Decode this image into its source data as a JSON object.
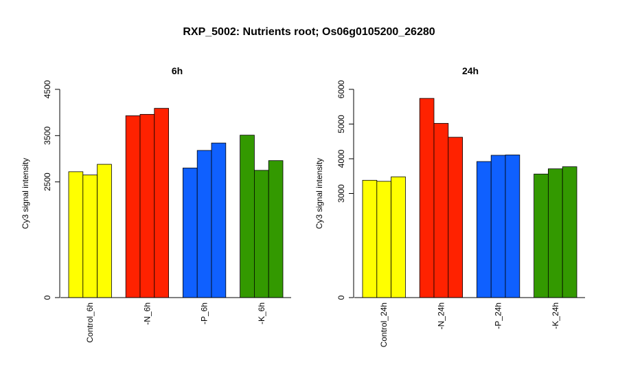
{
  "title": "RXP_5002: Nutrients root; Os06g0105200_26280",
  "colors": {
    "Control": "#FFFF00",
    "N": "#FF2200",
    "P": "#0F60FF",
    "K": "#339900"
  },
  "chart_data": [
    {
      "type": "bar",
      "title": "6h",
      "ylabel": "Cy3 signal intensity",
      "ylim": [
        0,
        4500
      ],
      "yticks": [
        0,
        2500,
        3500,
        4500
      ],
      "groups": [
        {
          "label": "Control_6h",
          "color_key": "Control",
          "values": [
            2720,
            2650,
            2880
          ]
        },
        {
          "label": "-N_6h",
          "color_key": "N",
          "values": [
            3930,
            3960,
            4090
          ]
        },
        {
          "label": "-P_6h",
          "color_key": "P",
          "values": [
            2800,
            3180,
            3340
          ]
        },
        {
          "label": "-K_6h",
          "color_key": "K",
          "values": [
            3510,
            2750,
            2960
          ]
        }
      ]
    },
    {
      "type": "bar",
      "title": "24h",
      "ylabel": "Cy3 signal intensity",
      "ylim": [
        0,
        6000
      ],
      "yticks": [
        0,
        3000,
        4000,
        5000,
        6000
      ],
      "groups": [
        {
          "label": "Control_24h",
          "color_key": "Control",
          "values": [
            3380,
            3350,
            3480
          ]
        },
        {
          "label": "-N_24h",
          "color_key": "N",
          "values": [
            5740,
            5020,
            4620
          ]
        },
        {
          "label": "-P_24h",
          "color_key": "P",
          "values": [
            3920,
            4100,
            4110
          ]
        },
        {
          "label": "-K_24h",
          "color_key": "K",
          "values": [
            3560,
            3710,
            3770
          ]
        }
      ]
    }
  ]
}
